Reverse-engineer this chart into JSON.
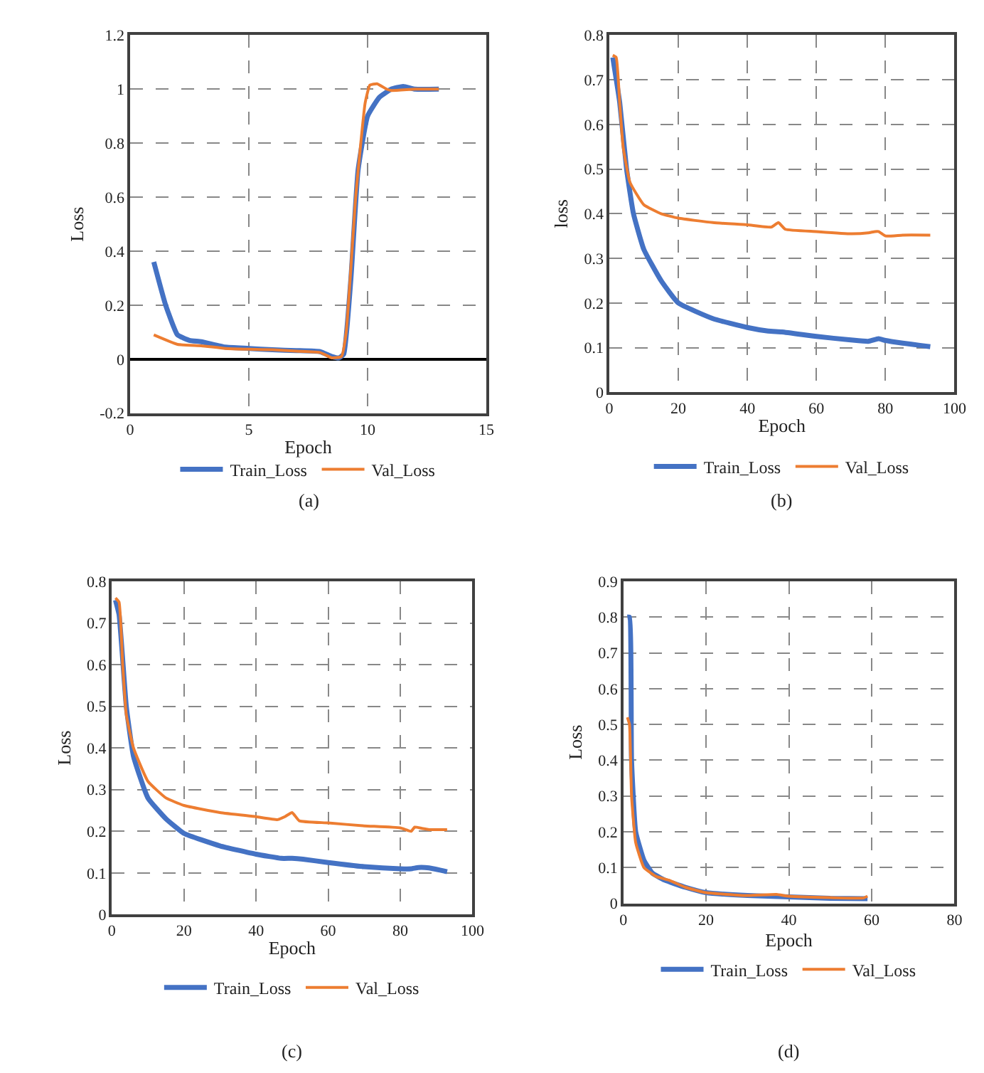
{
  "chart_data": [
    {
      "type": "line",
      "xlabel": "Epoch",
      "ylabel": "Loss",
      "annotations": [
        "(a)"
      ],
      "xlim": [
        0,
        15
      ],
      "ylim": [
        -0.2,
        1.2
      ],
      "xticks": [
        0,
        5,
        10,
        15
      ],
      "yticks": [
        -0.2,
        0,
        0.2,
        0.4,
        0.6,
        0.8,
        1,
        1.2
      ],
      "grid": true,
      "legend": "bottom",
      "series": [
        {
          "name": "Train_Loss",
          "color": "#4472c4",
          "x": [
            1,
            1.5,
            2,
            2.5,
            3,
            4,
            5,
            6,
            7,
            8,
            8.5,
            8.8,
            9,
            9.3,
            9.6,
            10,
            10.5,
            11,
            11.5,
            12,
            13
          ],
          "values": [
            0.36,
            0.2,
            0.09,
            0.07,
            0.065,
            0.045,
            0.04,
            0.035,
            0.032,
            0.028,
            0.01,
            0.005,
            0.02,
            0.3,
            0.7,
            0.9,
            0.97,
            1.0,
            1.01,
            1.0,
            1.0
          ]
        },
        {
          "name": "Val_Loss",
          "color": "#ed7d31",
          "x": [
            1,
            2,
            3,
            4,
            5,
            6,
            7,
            8,
            8.5,
            8.9,
            9.1,
            9.5,
            9.9,
            10.1,
            10.4,
            10.8,
            11,
            12,
            13
          ],
          "values": [
            0.09,
            0.055,
            0.05,
            0.04,
            0.037,
            0.035,
            0.03,
            0.025,
            0.005,
            0.01,
            0.1,
            0.6,
            0.95,
            1.015,
            1.02,
            1.0,
            0.995,
            1.0,
            1.0
          ]
        }
      ]
    },
    {
      "type": "line",
      "xlabel": "Epoch",
      "ylabel": "loss",
      "annotations": [
        "(b)"
      ],
      "xlim": [
        0,
        100
      ],
      "ylim": [
        0,
        0.8
      ],
      "xticks": [
        0,
        20,
        40,
        60,
        80,
        100
      ],
      "yticks": [
        0,
        0.1,
        0.2,
        0.3,
        0.4,
        0.5,
        0.6,
        0.7,
        0.8
      ],
      "grid": true,
      "legend": "bottom",
      "series": [
        {
          "name": "Train_Loss",
          "color": "#4472c4",
          "x": [
            1,
            3,
            5,
            7,
            10,
            15,
            20,
            30,
            40,
            46,
            50,
            60,
            70,
            75,
            78,
            80,
            85,
            90,
            93
          ],
          "values": [
            0.75,
            0.65,
            0.5,
            0.4,
            0.32,
            0.25,
            0.2,
            0.165,
            0.145,
            0.137,
            0.135,
            0.125,
            0.117,
            0.114,
            0.12,
            0.116,
            0.11,
            0.105,
            0.102
          ]
        },
        {
          "name": "Val_Loss",
          "color": "#ed7d31",
          "x": [
            1,
            2,
            3,
            4,
            6,
            10,
            15,
            20,
            30,
            40,
            47,
            49,
            51,
            60,
            70,
            75,
            77,
            78,
            80,
            85,
            93
          ],
          "values": [
            0.755,
            0.75,
            0.65,
            0.55,
            0.47,
            0.42,
            0.4,
            0.39,
            0.38,
            0.375,
            0.37,
            0.38,
            0.365,
            0.36,
            0.355,
            0.357,
            0.36,
            0.36,
            0.35,
            0.352,
            0.352
          ]
        }
      ]
    },
    {
      "type": "line",
      "xlabel": "Epoch",
      "ylabel": "Loss",
      "annotations": [
        "(c)"
      ],
      "xlim": [
        0,
        100
      ],
      "ylim": [
        0,
        0.8
      ],
      "xticks": [
        0,
        20,
        40,
        60,
        80,
        100
      ],
      "yticks": [
        0,
        0.1,
        0.2,
        0.3,
        0.4,
        0.5,
        0.6,
        0.7,
        0.8
      ],
      "grid": true,
      "legend": "bottom",
      "series": [
        {
          "name": "Train_Loss",
          "color": "#4472c4",
          "x": [
            1,
            2,
            4,
            6,
            10,
            15,
            20,
            30,
            40,
            47,
            50,
            53,
            60,
            70,
            80,
            83,
            85,
            88,
            93
          ],
          "values": [
            0.755,
            0.72,
            0.5,
            0.38,
            0.28,
            0.23,
            0.195,
            0.165,
            0.145,
            0.135,
            0.135,
            0.133,
            0.125,
            0.115,
            0.11,
            0.11,
            0.113,
            0.112,
            0.103
          ]
        },
        {
          "name": "Val_Loss",
          "color": "#ed7d31",
          "x": [
            1,
            2,
            3,
            4,
            6,
            10,
            15,
            20,
            30,
            40,
            46,
            48,
            50,
            52,
            60,
            70,
            80,
            83,
            84,
            86,
            88,
            93
          ],
          "values": [
            0.76,
            0.75,
            0.6,
            0.48,
            0.4,
            0.32,
            0.28,
            0.262,
            0.245,
            0.235,
            0.228,
            0.235,
            0.245,
            0.225,
            0.22,
            0.213,
            0.208,
            0.2,
            0.21,
            0.207,
            0.204,
            0.204
          ]
        }
      ]
    },
    {
      "type": "line",
      "xlabel": "Epoch",
      "ylabel": "Loss",
      "annotations": [
        "(d)"
      ],
      "xlim": [
        0,
        80
      ],
      "ylim": [
        0,
        0.9
      ],
      "xticks": [
        0,
        20,
        40,
        60,
        80
      ],
      "yticks": [
        0,
        0.1,
        0.2,
        0.3,
        0.4,
        0.5,
        0.6,
        0.7,
        0.8,
        0.9
      ],
      "grid": true,
      "legend": "bottom",
      "series": [
        {
          "name": "Train_Loss",
          "color": "#4472c4",
          "x": [
            1,
            1.5,
            2,
            3,
            5,
            7,
            10,
            15,
            20,
            30,
            40,
            50,
            59
          ],
          "values": [
            0.8,
            0.8,
            0.4,
            0.2,
            0.12,
            0.085,
            0.065,
            0.045,
            0.03,
            0.022,
            0.018,
            0.014,
            0.013
          ]
        },
        {
          "name": "Val_Loss",
          "color": "#ed7d31",
          "x": [
            1,
            1.5,
            2,
            3,
            5,
            8,
            11,
            15,
            20,
            30,
            37,
            40,
            50,
            58,
            59
          ],
          "values": [
            0.52,
            0.5,
            0.3,
            0.17,
            0.1,
            0.075,
            0.065,
            0.045,
            0.03,
            0.022,
            0.025,
            0.02,
            0.016,
            0.015,
            0.02
          ]
        }
      ]
    }
  ]
}
